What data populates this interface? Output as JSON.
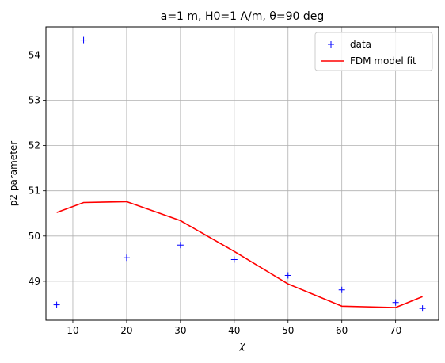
{
  "chart_data": {
    "type": "line",
    "title": "a=1 m, H0=1 A/m, θ=90 deg",
    "xlabel": "χ",
    "ylabel": "p2 parameter",
    "xlim": [
      5,
      78
    ],
    "ylim": [
      48.14,
      54.62
    ],
    "xticks": [
      10,
      20,
      30,
      40,
      50,
      60,
      70
    ],
    "yticks": [
      49,
      50,
      51,
      52,
      53,
      54
    ],
    "grid": true,
    "legend_position": "top-right",
    "series": [
      {
        "name": "data",
        "style": "markers",
        "marker": "+",
        "color": "#0000ff",
        "x": [
          7,
          12,
          20,
          30,
          40,
          50,
          60,
          70,
          75
        ],
        "y": [
          48.48,
          54.33,
          49.52,
          49.8,
          49.48,
          49.13,
          48.81,
          48.53,
          48.4
        ]
      },
      {
        "name": "FDM model fit",
        "style": "line",
        "color": "#ff0000",
        "x": [
          7,
          12,
          20,
          30,
          40,
          50,
          60,
          70,
          75
        ],
        "y": [
          50.52,
          50.74,
          50.76,
          50.34,
          49.66,
          48.94,
          48.45,
          48.42,
          48.66
        ]
      }
    ]
  }
}
